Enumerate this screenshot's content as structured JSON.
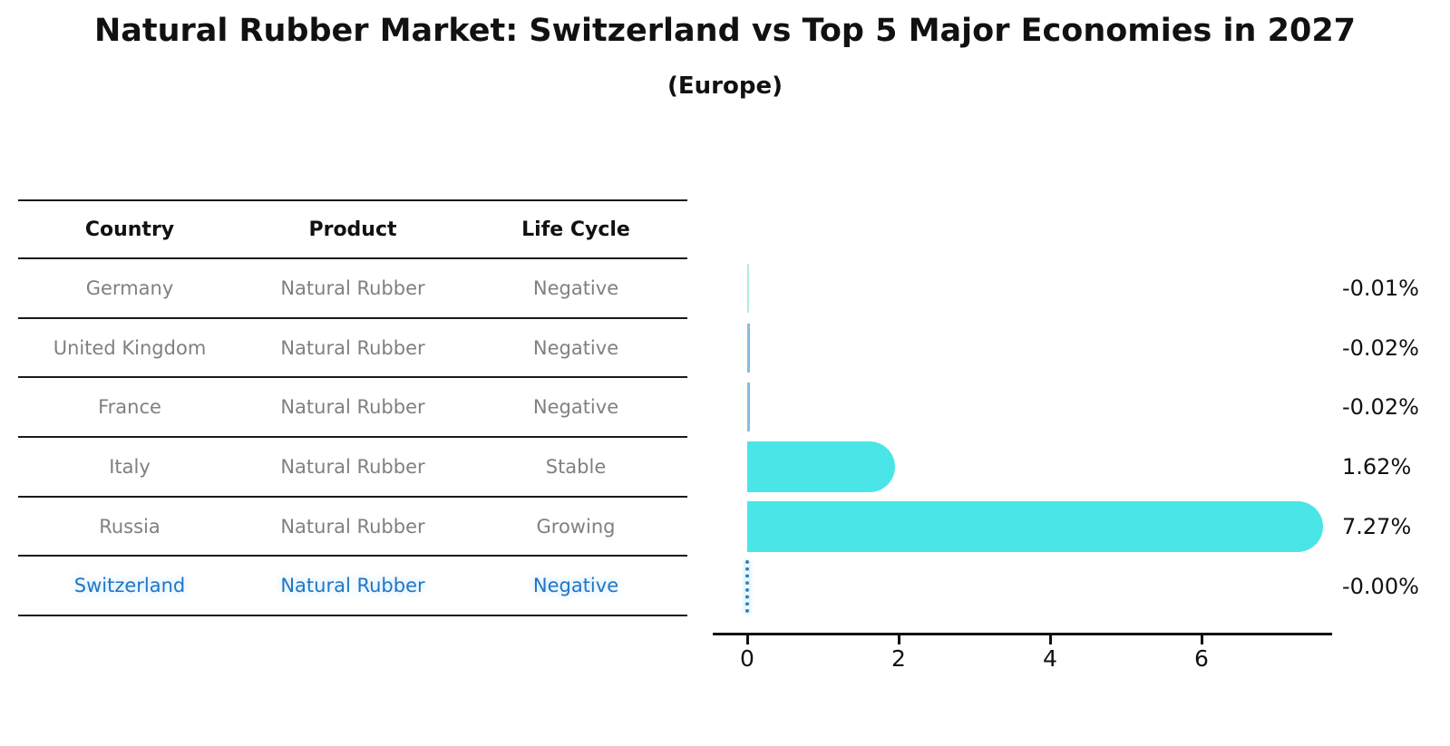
{
  "title": "Natural Rubber Market: Switzerland vs Top 5 Major Economies in 2027",
  "subtitle": "(Europe)",
  "table": {
    "headers": [
      "Country",
      "Product",
      "Life Cycle"
    ],
    "rows": [
      {
        "country": "Germany",
        "product": "Natural Rubber",
        "life_cycle": "Negative",
        "highlight": false
      },
      {
        "country": "United Kingdom",
        "product": "Natural Rubber",
        "life_cycle": "Negative",
        "highlight": false
      },
      {
        "country": "France",
        "product": "Natural Rubber",
        "life_cycle": "Negative",
        "highlight": false
      },
      {
        "country": "Italy",
        "product": "Natural Rubber",
        "life_cycle": "Stable",
        "highlight": false
      },
      {
        "country": "Russia",
        "product": "Natural Rubber",
        "life_cycle": "Growing",
        "highlight": false
      },
      {
        "country": "Switzerland",
        "product": "Natural Rubber",
        "life_cycle": "Negative",
        "highlight": true
      }
    ]
  },
  "chart_data": {
    "type": "bar",
    "orientation": "horizontal",
    "title": "Natural Rubber Market: Switzerland vs Top 5 Major Economies in 2027 (Europe)",
    "categories": [
      "Germany",
      "United Kingdom",
      "France",
      "Italy",
      "Russia",
      "Switzerland"
    ],
    "values": [
      -0.01,
      -0.02,
      -0.02,
      1.62,
      7.27,
      -0.0
    ],
    "value_labels": [
      "-0.01%",
      "-0.02%",
      "-0.02%",
      "1.62%",
      "7.27%",
      "-0.00%"
    ],
    "xlabel": "",
    "ylabel": "",
    "xticks": [
      0,
      2,
      4,
      6
    ],
    "xlim": [
      -0.45,
      7.72
    ],
    "grid": false,
    "legend": false,
    "highlight_index": 5
  },
  "colors": {
    "bar_cyan": "#4ae5e7",
    "sliver_pale_teal": "#b5e9dd",
    "sliver_steel_blue": "#85bede",
    "highlight_blue": "#2176c4",
    "dashed_bar_blue": "#3380c0",
    "table_text_gray": "#808080",
    "ink": "#111111"
  }
}
